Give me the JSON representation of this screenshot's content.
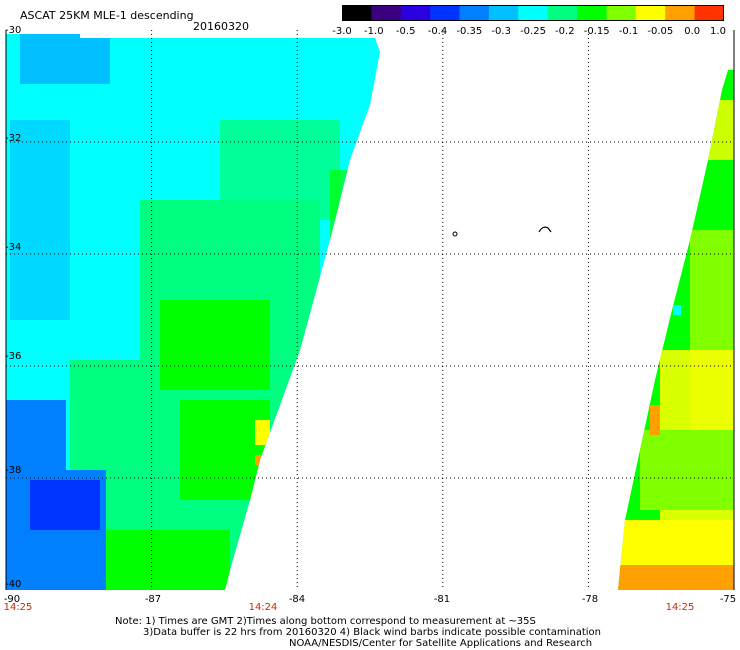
{
  "header": {
    "title": "ASCAT 25KM MLE-1 descending",
    "date": "20160320"
  },
  "colorbar": {
    "labels": [
      "-3.0",
      "-1.0",
      "-0.5",
      "-0.4",
      "-0.35",
      "-0.3",
      "-0.25",
      "-0.2",
      "-0.15",
      "-0.1",
      "-0.05",
      "0.0",
      "1.0"
    ],
    "colors": [
      "#000000",
      "#3a0080",
      "#2a00e0",
      "#0033ff",
      "#0080ff",
      "#00c0ff",
      "#00ffff",
      "#00ff80",
      "#00ff00",
      "#80ff00",
      "#ffff00",
      "#ffa000",
      "#ff3300"
    ]
  },
  "map": {
    "lat_labels": [
      "-30",
      "-32",
      "-34",
      "-36",
      "-38",
      "-40"
    ],
    "lon_labels": [
      "-90",
      "-87",
      "-84",
      "-81",
      "-78",
      "-75"
    ],
    "lat_values": [
      -30,
      -32,
      -34,
      -36,
      -38,
      -40
    ],
    "lon_values": [
      -90,
      -87,
      -84,
      -81,
      -78,
      -75
    ],
    "lat_range": [
      -40,
      -30
    ],
    "lon_range": [
      -90,
      -75
    ],
    "times": [
      {
        "label": "14:25",
        "lon": -90
      },
      {
        "label": "14:24",
        "lon": -84.6
      },
      {
        "label": "14:25",
        "lon": -76.2
      }
    ]
  },
  "notes": [
    "Note: 1) Times are GMT 2)Times along bottom correspond to measurement at ~35S",
    "3)Data buffer is 22 hrs from 20160320 4) Black wind barbs indicate possible contamination",
    "NOAA/NESDIS/Center for Satellite Applications and Research"
  ]
}
